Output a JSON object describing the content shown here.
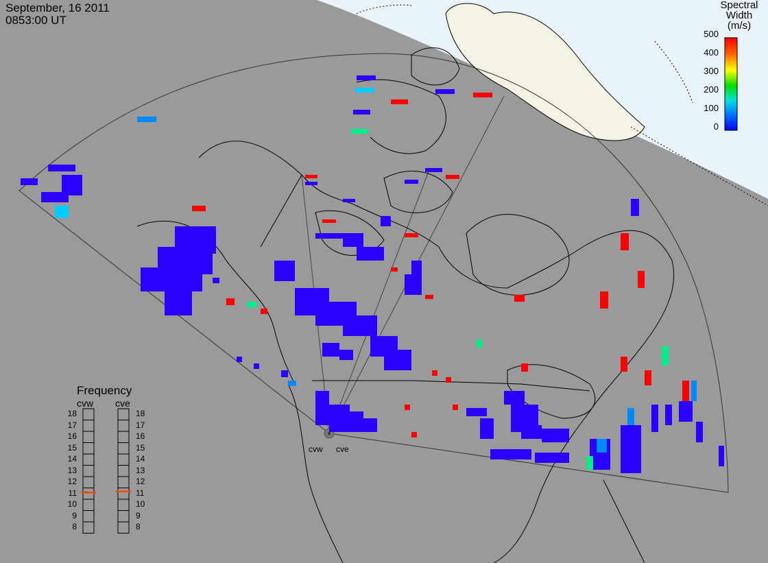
{
  "header": {
    "date": "September, 16 2011",
    "time": "0853:00 UT"
  },
  "colorbar": {
    "title_line1": "Spectral",
    "title_line2": "Width (m/s)",
    "ticks": [
      "500",
      "400",
      "300",
      "200",
      "100",
      "0"
    ],
    "colors": [
      "#ff0000",
      "#ffaa00",
      "#ffff00",
      "#00dd00",
      "#00e0e0",
      "#0080ff",
      "#0000ff"
    ],
    "range": [
      0,
      500
    ]
  },
  "frequency": {
    "title": "Frequency",
    "radars": [
      "cvw",
      "cve"
    ],
    "ticks": [
      "18",
      "17",
      "16",
      "15",
      "14",
      "13",
      "12",
      "11",
      "10",
      "9",
      "8"
    ],
    "current_mhz": {
      "cvw": 10.6,
      "cve": 10.7
    },
    "marker_color": "#ff4400"
  },
  "sites": [
    "cvw",
    "cve"
  ],
  "colors": {
    "background": "#9a9a9a",
    "sunlit": "#e8f4fa",
    "land_sunlit": "#f5f3e3",
    "echo_low": "#2a00ff",
    "echo_high": "#ff0000"
  }
}
